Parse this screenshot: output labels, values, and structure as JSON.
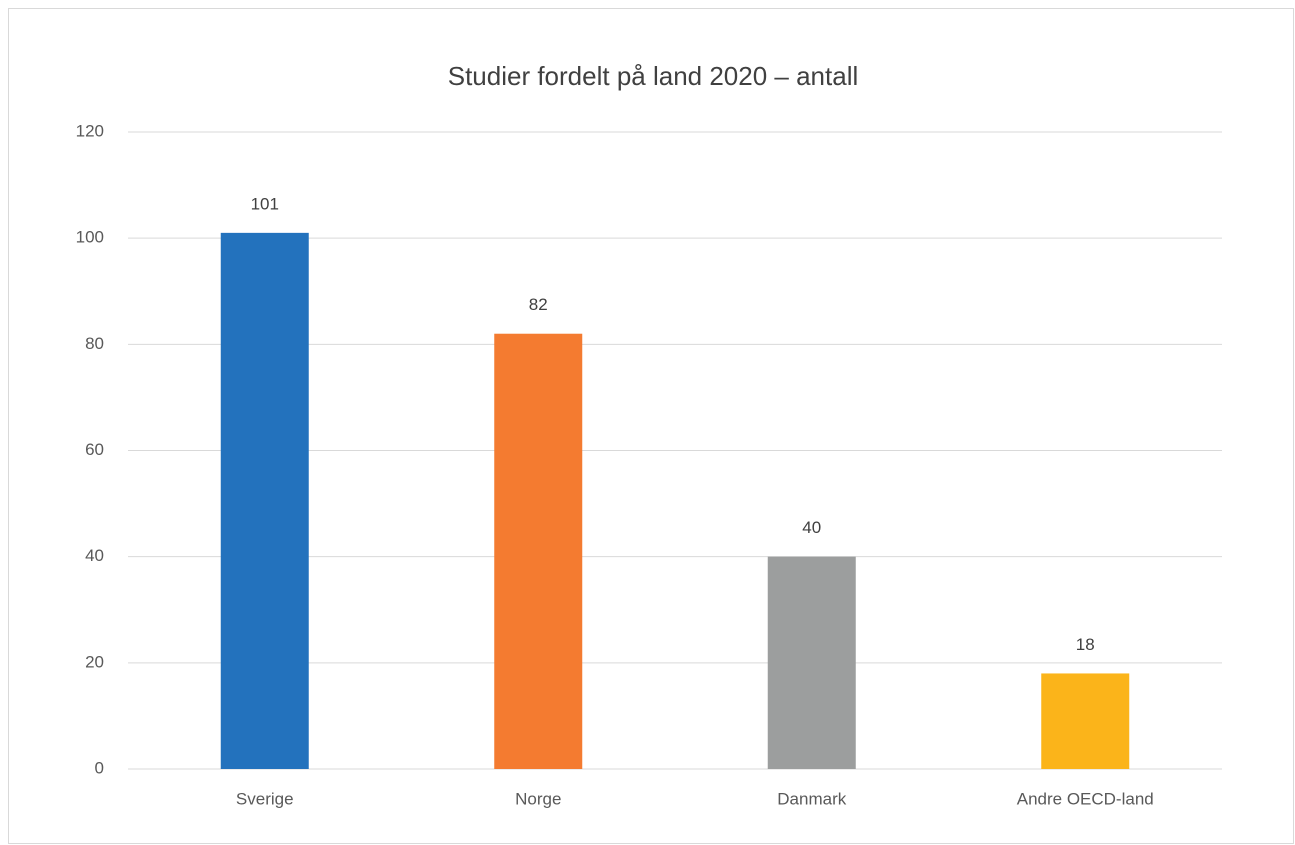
{
  "chart_data": {
    "type": "bar",
    "title": "Studier fordelt på land 2020 – antall",
    "categories": [
      "Sverige",
      "Norge",
      "Danmark",
      "Andre OECD-land"
    ],
    "values": [
      101,
      82,
      40,
      18
    ],
    "colors": [
      "#2372bd",
      "#f47b30",
      "#9c9e9e",
      "#fbb41a"
    ],
    "ylim": [
      0,
      120
    ],
    "yticks": [
      0,
      20,
      40,
      60,
      80,
      100,
      120
    ],
    "grid": true
  }
}
